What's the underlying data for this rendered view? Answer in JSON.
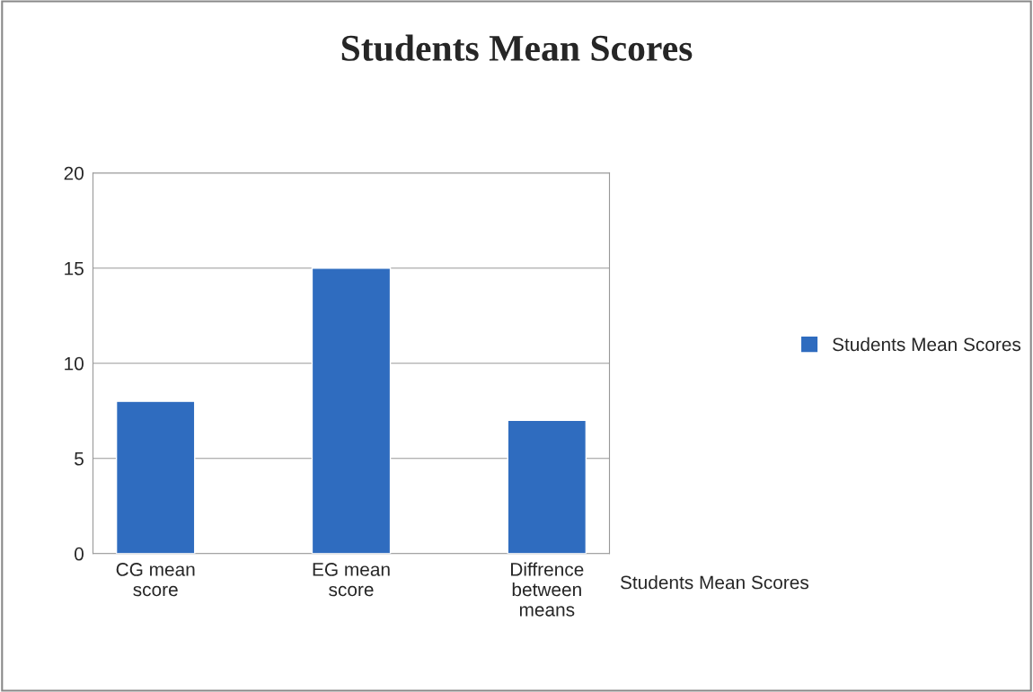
{
  "chart_data": {
    "type": "bar",
    "title": "Students Mean Scores",
    "categories": [
      "CG mean\nscore",
      "EG mean\nscore",
      "Diffrence\nbetween\nmeans"
    ],
    "series": [
      {
        "name": "Students Mean Scores",
        "color": "#2f6cbf",
        "values": [
          8,
          15,
          7
        ]
      }
    ],
    "annotations": [
      "Students Mean Scores"
    ],
    "ylim": [
      0,
      20
    ],
    "yticks": [
      0,
      5,
      10,
      15,
      20
    ],
    "grid": "y",
    "legend": "right"
  }
}
